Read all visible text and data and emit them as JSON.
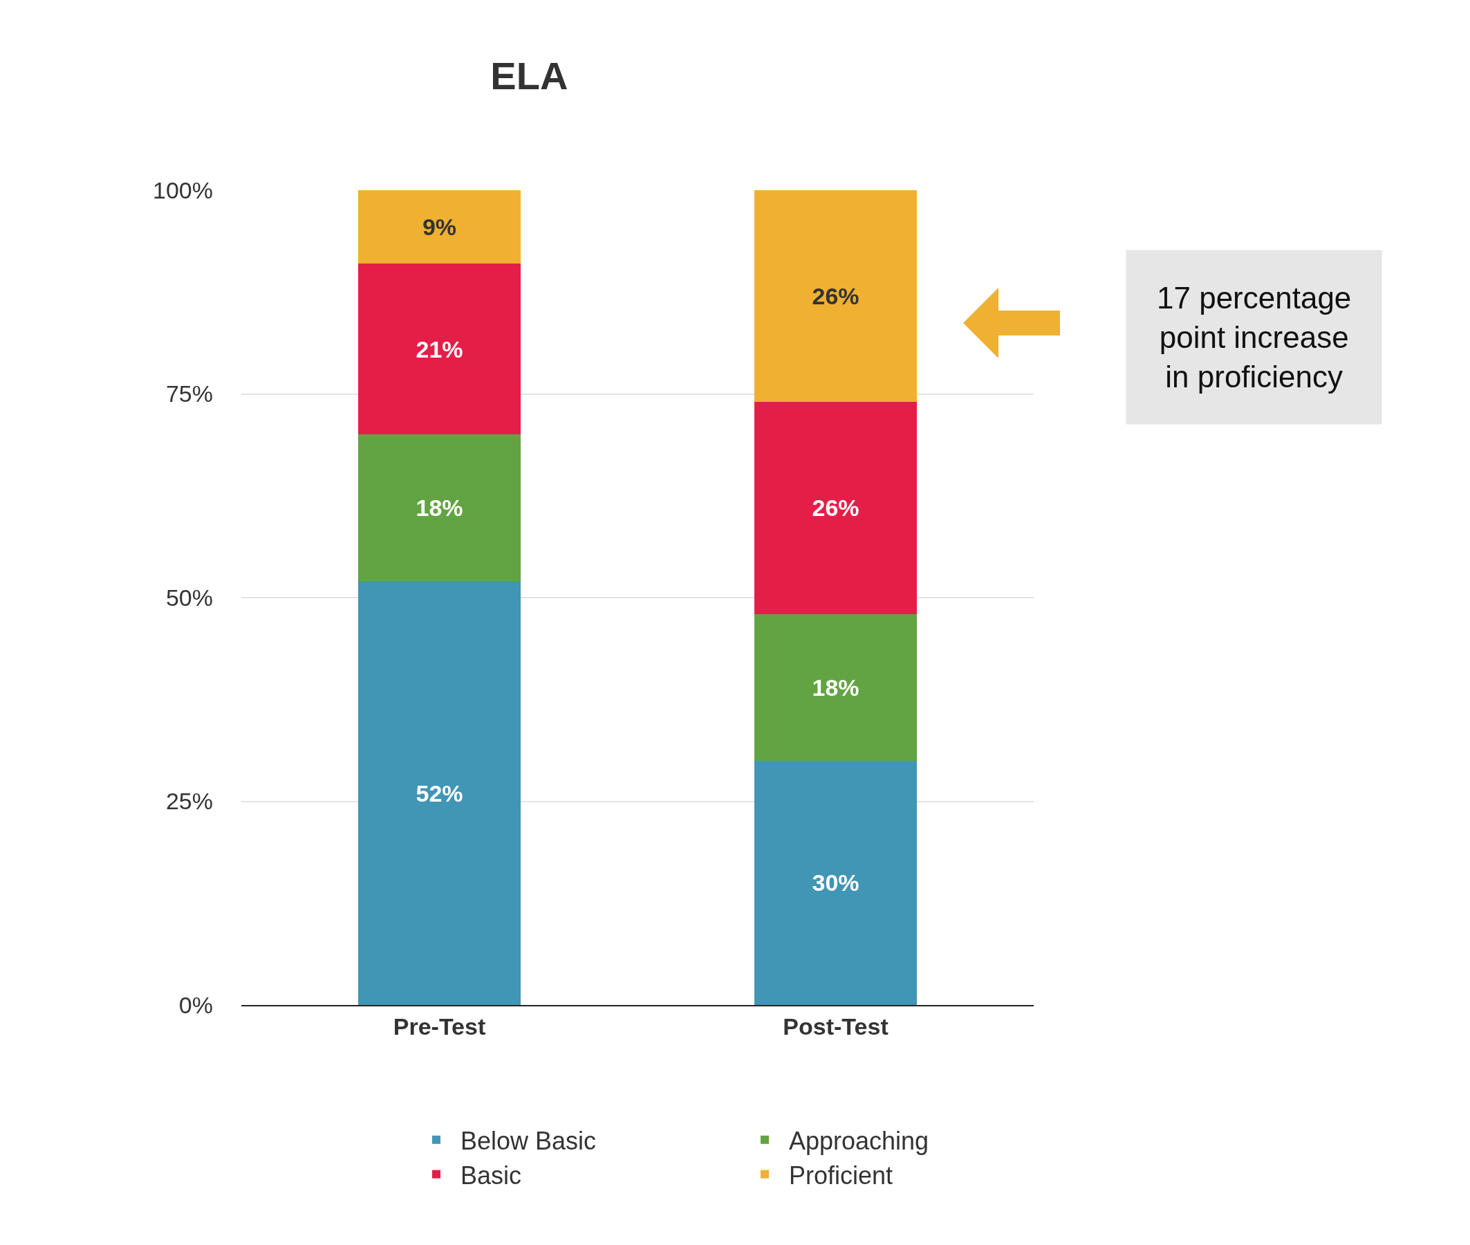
{
  "chart_data": {
    "type": "bar",
    "title": "ELA",
    "categories": [
      "Pre-Test",
      "Post-Test"
    ],
    "stacked": true,
    "series": [
      {
        "name": "Below Basic",
        "color": "#4195b5",
        "values": [
          52,
          30
        ],
        "value_labels": [
          "52%",
          "30%"
        ]
      },
      {
        "name": "Approaching",
        "color": "#62a443",
        "values": [
          18,
          18
        ],
        "value_labels": [
          "18%",
          "18%"
        ]
      },
      {
        "name": "Basic",
        "color": "#e51e48",
        "values": [
          21,
          26
        ],
        "value_labels": [
          "21%",
          "26%"
        ]
      },
      {
        "name": "Proficient",
        "color": "#f0b031",
        "values": [
          9,
          26
        ],
        "value_labels": [
          "9%",
          "26%"
        ]
      }
    ],
    "ylim": [
      0,
      100
    ],
    "yticks": [
      {
        "value": 0,
        "label": "0%"
      },
      {
        "value": 25,
        "label": "25%"
      },
      {
        "value": 50,
        "label": "50%"
      },
      {
        "value": 75,
        "label": "75%"
      },
      {
        "value": 100,
        "label": "100%"
      }
    ],
    "grid": "y",
    "legend": "bottom",
    "annotations": [
      "17 percentage point increase in proficiency"
    ]
  }
}
